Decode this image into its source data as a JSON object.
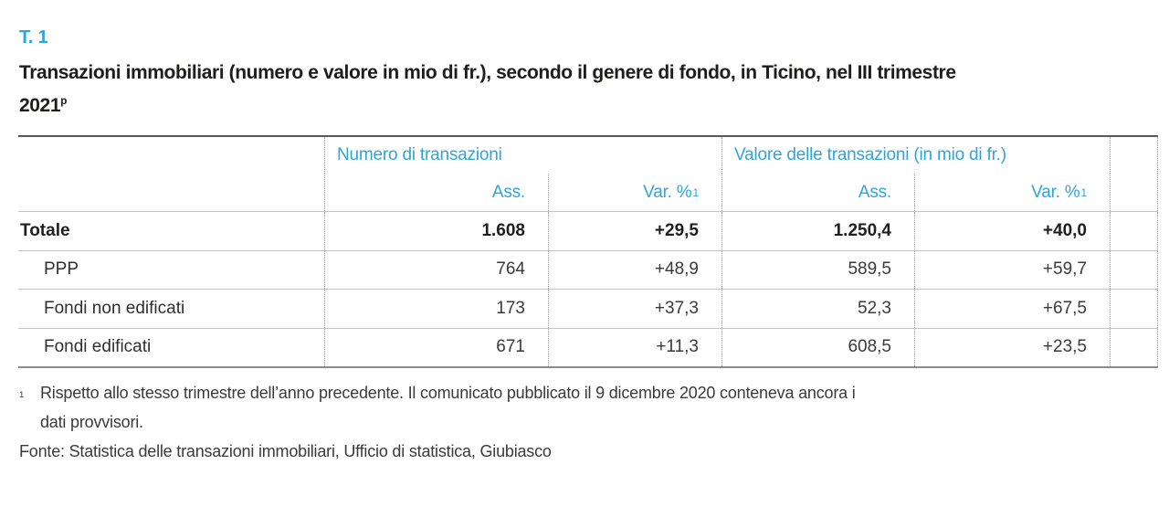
{
  "page": {
    "table_tag": "T. 1",
    "title_line1": "Transazioni immobiliari (numero e valore in mio di fr.), secondo il genere di fondo, in Ticino, nel III trimestre",
    "title_year": "2021",
    "title_superscript": "p"
  },
  "table": {
    "col_groups": [
      {
        "label": "Numero di transazioni"
      },
      {
        "label": "Valore delle transazioni (in mio di fr.)"
      }
    ],
    "sub_headers": [
      {
        "label": "Ass."
      },
      {
        "label": "Var. %",
        "sup": "1"
      },
      {
        "label": "Ass."
      },
      {
        "label": "Var. %",
        "sup": "1"
      }
    ],
    "rows": [
      {
        "label": "Totale",
        "values": [
          "1.608",
          "+29,5",
          "1.250,4",
          "+40,0"
        ]
      },
      {
        "label": "PPP",
        "values": [
          "764",
          "+48,9",
          "589,5",
          "+59,7"
        ]
      },
      {
        "label": "Fondi non edificati",
        "values": [
          "173",
          "+37,3",
          "52,3",
          "+67,5"
        ]
      },
      {
        "label": "Fondi edificati",
        "values": [
          "671",
          "+11,3",
          "608,5",
          "+23,5"
        ]
      }
    ]
  },
  "footnotes": {
    "marker": "1",
    "note_line1": "Rispetto allo stesso trimestre dell’anno precedente. Il comunicato pubblicato il 9 dicembre 2020 conteneva ancora i",
    "note_line2": "dati provvisori.",
    "source": "Fonte: Statistica delle transazioni immobiliari, Ufficio di statistica, Giubiasco"
  },
  "colors": {
    "accent": "#2ea5d9"
  }
}
